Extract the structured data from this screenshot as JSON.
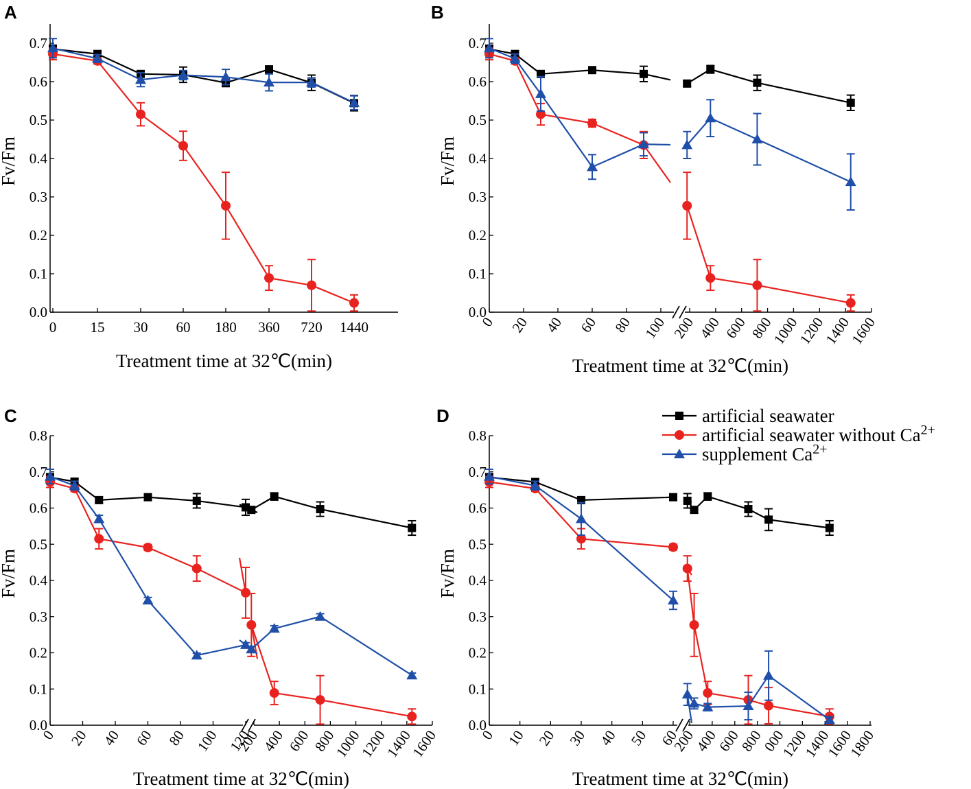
{
  "figure": {
    "legend": [
      {
        "name": "artificial seawater",
        "color": "#000000",
        "marker": "square"
      },
      {
        "name": "artificial seawater without Ca",
        "sup": "2+",
        "color": "#e8231f",
        "marker": "circle"
      },
      {
        "name": "supplement Ca",
        "sup": "2+",
        "color": "#1f4fa8",
        "marker": "triangle"
      }
    ],
    "legend_position": "top-right"
  },
  "chart_data": [
    {
      "panel": "A",
      "type": "line",
      "xlabel": "Treatment time at 32℃(min)",
      "ylabel": "Fv/Fm",
      "ylim": [
        0.0,
        0.75
      ],
      "yticks": [
        "0.0",
        "0.1",
        "0.2",
        "0.3",
        "0.4",
        "0.5",
        "0.6",
        "0.7"
      ],
      "x_scale": "categorical",
      "categories": [
        "0",
        "15",
        "30",
        "60",
        "180",
        "360",
        "720",
        "1440"
      ],
      "series": [
        {
          "name": "artificial seawater",
          "values": [
            0.685,
            0.672,
            0.62,
            0.618,
            0.597,
            0.632,
            0.597,
            0.544
          ],
          "errors": [
            0.01,
            0.008,
            0.008,
            0.02,
            0.01,
            0.008,
            0.02,
            0.02
          ]
        },
        {
          "name": "artificial seawater without Ca2+",
          "values": [
            0.672,
            0.654,
            0.515,
            0.433,
            0.277,
            0.089,
            0.07,
            0.024
          ],
          "errors": [
            0.015,
            0.008,
            0.03,
            0.038,
            0.087,
            0.032,
            0.067,
            0.021
          ]
        },
        {
          "name": "supplement Ca2+",
          "values": [
            0.687,
            0.66,
            0.605,
            0.617,
            0.612,
            0.598,
            0.598,
            0.545
          ],
          "errors": [
            0.025,
            0.01,
            0.018,
            0.012,
            0.02,
            0.022,
            0.012,
            0.018
          ]
        }
      ]
    },
    {
      "panel": "B",
      "type": "line",
      "xlabel": "Treatment time at 32℃(min)",
      "ylabel": "Fv/Fm",
      "ylim": [
        0.0,
        0.75
      ],
      "yticks": [
        "0.0",
        "0.1",
        "0.2",
        "0.3",
        "0.4",
        "0.5",
        "0.6",
        "0.7"
      ],
      "x_segments": [
        {
          "range": [
            0,
            100
          ],
          "ticks": [
            0,
            20,
            40,
            60,
            80,
            100
          ]
        },
        {
          "range": [
            200,
            1600
          ],
          "ticks": [
            200,
            400,
            600,
            800,
            1000,
            1200,
            1400,
            1600
          ]
        }
      ],
      "axis_break": true,
      "series": [
        {
          "name": "artificial seawater",
          "x": [
            0,
            15,
            30,
            60,
            90,
            180,
            360,
            720,
            1440
          ],
          "values": [
            0.685,
            0.672,
            0.62,
            0.63,
            0.62,
            0.595,
            0.632,
            0.597,
            0.545
          ],
          "errors": [
            0.01,
            0.008,
            0.008,
            0.007,
            0.02,
            0.008,
            0.01,
            0.02,
            0.02
          ]
        },
        {
          "name": "artificial seawater without Ca2+",
          "x": [
            0,
            15,
            30,
            60,
            90,
            180,
            360,
            720,
            1440
          ],
          "values": [
            0.672,
            0.654,
            0.515,
            0.492,
            0.435,
            0.277,
            0.089,
            0.07,
            0.024
          ],
          "errors": [
            0.015,
            0.008,
            0.028,
            0.01,
            0.035,
            0.087,
            0.032,
            0.067,
            0.021
          ]
        },
        {
          "name": "supplement Ca2+",
          "x": [
            0,
            15,
            30,
            60,
            90,
            180,
            360,
            720,
            1440
          ],
          "values": [
            0.687,
            0.66,
            0.568,
            0.378,
            0.437,
            0.435,
            0.505,
            0.45,
            0.339
          ],
          "errors": [
            0.025,
            0.012,
            0.045,
            0.032,
            0.03,
            0.035,
            0.048,
            0.067,
            0.073
          ]
        }
      ]
    },
    {
      "panel": "C",
      "type": "line",
      "xlabel": "Treatment time at 32℃(min)",
      "ylabel": "Fv/Fm",
      "ylim": [
        0.0,
        0.8
      ],
      "yticks": [
        "0.0",
        "0.1",
        "0.2",
        "0.3",
        "0.4",
        "0.5",
        "0.6",
        "0.7",
        "0.8"
      ],
      "x_segments": [
        {
          "range": [
            0,
            120
          ],
          "ticks": [
            0,
            20,
            40,
            60,
            80,
            100,
            120
          ]
        },
        {
          "range": [
            200,
            1600
          ],
          "ticks": [
            200,
            400,
            600,
            800,
            1000,
            1200,
            1400,
            1600
          ]
        }
      ],
      "axis_break": true,
      "series": [
        {
          "name": "artificial seawater",
          "x": [
            0,
            15,
            30,
            60,
            90,
            120,
            180,
            360,
            720,
            1440
          ],
          "values": [
            0.685,
            0.673,
            0.622,
            0.63,
            0.62,
            0.602,
            0.595,
            0.632,
            0.597,
            0.545
          ],
          "errors": [
            0.01,
            0.008,
            0.008,
            0.008,
            0.02,
            0.022,
            0.008,
            0.01,
            0.02,
            0.02
          ]
        },
        {
          "name": "artificial seawater without Ca2+",
          "x": [
            0,
            15,
            30,
            60,
            90,
            120,
            180,
            360,
            720,
            1440
          ],
          "values": [
            0.672,
            0.654,
            0.515,
            0.491,
            0.433,
            0.366,
            0.277,
            0.089,
            0.07,
            0.024
          ],
          "errors": [
            0.015,
            0.008,
            0.028,
            0.008,
            0.035,
            0.07,
            0.087,
            0.032,
            0.067,
            0.021
          ]
        },
        {
          "name": "supplement Ca2+",
          "x": [
            0,
            15,
            30,
            60,
            90,
            120,
            180,
            360,
            720,
            1440
          ],
          "values": [
            0.687,
            0.662,
            0.57,
            0.345,
            0.193,
            0.222,
            0.21,
            0.267,
            0.3,
            0.138
          ],
          "errors": [
            0.02,
            0.012,
            0.01,
            0.008,
            0.006,
            0.006,
            0.008,
            0.008,
            0.008,
            0.006
          ]
        }
      ]
    },
    {
      "panel": "D",
      "type": "line",
      "xlabel": "Treatment time at 32℃(min)",
      "ylabel": "Fv/Fm",
      "ylim": [
        0.0,
        0.8
      ],
      "yticks": [
        "0.0",
        "0.1",
        "0.2",
        "0.3",
        "0.4",
        "0.5",
        "0.6",
        "0.7",
        "0.8"
      ],
      "x_segments": [
        {
          "range": [
            0,
            60
          ],
          "ticks": [
            0,
            10,
            20,
            30,
            40,
            50,
            60
          ]
        },
        {
          "range": [
            200,
            1800
          ],
          "tick_labels": [
            "200",
            "400",
            "600",
            "800",
            "000",
            "1200",
            "1400",
            "1600",
            "1800"
          ]
        }
      ],
      "axis_break": true,
      "series": [
        {
          "name": "artificial seawater",
          "x": [
            0,
            15,
            30,
            60,
            180,
            240,
            360,
            720,
            900,
            1440
          ],
          "values": [
            0.685,
            0.672,
            0.622,
            0.63,
            0.62,
            0.595,
            0.632,
            0.597,
            0.568,
            0.545
          ],
          "errors": [
            0.01,
            0.008,
            0.008,
            0.007,
            0.02,
            0.008,
            0.01,
            0.02,
            0.03,
            0.02
          ]
        },
        {
          "name": "artificial seawater without Ca2+",
          "x": [
            0,
            15,
            30,
            60,
            180,
            240,
            360,
            720,
            900,
            1440
          ],
          "values": [
            0.672,
            0.654,
            0.515,
            0.492,
            0.433,
            0.277,
            0.089,
            0.07,
            0.054,
            0.024
          ],
          "errors": [
            0.015,
            0.008,
            0.028,
            0.008,
            0.035,
            0.087,
            0.032,
            0.067,
            0.05,
            0.021
          ]
        },
        {
          "name": "supplement Ca2+",
          "x": [
            0,
            15,
            30,
            60,
            180,
            240,
            360,
            720,
            900,
            1440
          ],
          "values": [
            0.687,
            0.662,
            0.57,
            0.345,
            0.085,
            0.06,
            0.05,
            0.053,
            0.137,
            0.015
          ],
          "errors": [
            0.02,
            0.012,
            0.045,
            0.025,
            0.03,
            0.015,
            0.01,
            0.038,
            0.068,
            0.008
          ]
        }
      ]
    }
  ]
}
